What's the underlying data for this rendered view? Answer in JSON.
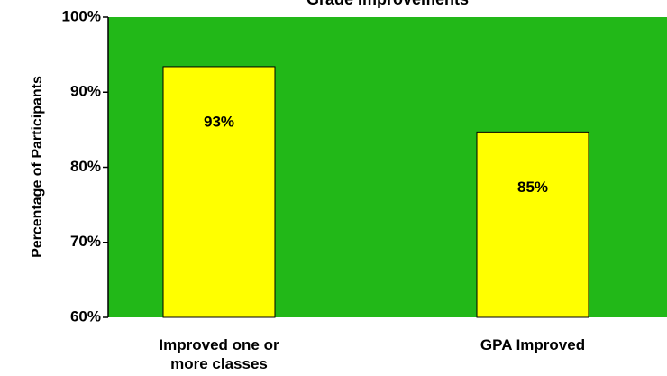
{
  "chart_data": {
    "type": "bar",
    "title": "Grade Improvements",
    "y_label": "Percentage of Participants",
    "categories": [
      "Improved one or more classes",
      "GPA Improved"
    ],
    "values": [
      93.4,
      84.7
    ],
    "value_labels": [
      "93%",
      "85%"
    ],
    "color": "#ffff00",
    "background": "#22b818",
    "ylim": [
      60,
      100
    ],
    "yticks": [
      {
        "value": 60,
        "label": "60%"
      },
      {
        "value": 70,
        "label": "70%"
      },
      {
        "value": 80,
        "label": "80%"
      },
      {
        "value": 90,
        "label": "90%"
      },
      {
        "value": 100,
        "label": "100%"
      }
    ]
  }
}
